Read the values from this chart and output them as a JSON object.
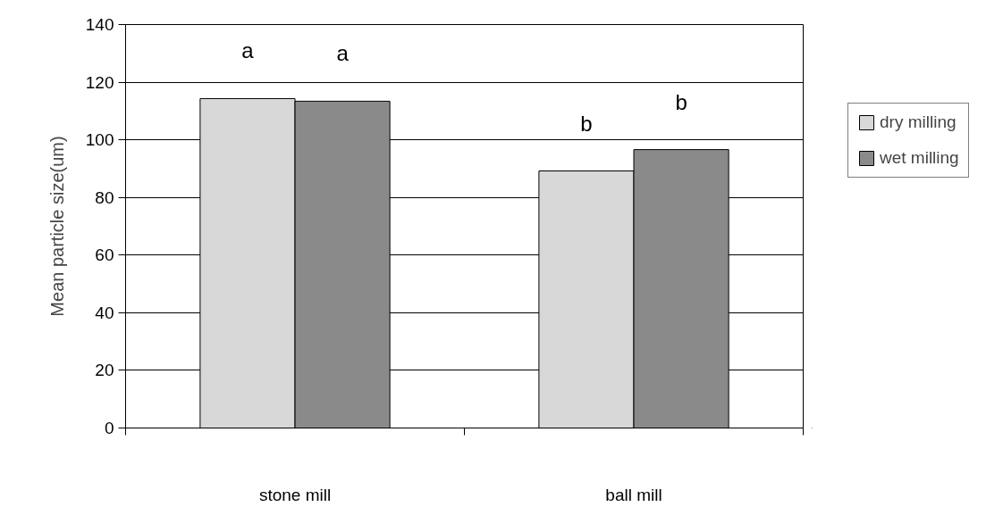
{
  "chart_data": {
    "type": "bar",
    "ylabel": "Mean particle size(um)",
    "categories": [
      "stone mill",
      "ball mill"
    ],
    "series": [
      {
        "name": "dry milling",
        "color": "#d8d8d8",
        "values": [
          114.3,
          89.2
        ],
        "value_labels": [
          "a",
          "b"
        ]
      },
      {
        "name": "wet milling",
        "color": "#8a8a8a",
        "values": [
          113.4,
          96.6
        ],
        "value_labels": [
          "a",
          "b"
        ]
      }
    ],
    "ylim": [
      0,
      140
    ],
    "yticks": [
      0,
      20,
      40,
      60,
      80,
      100,
      120,
      140
    ],
    "grid": "y",
    "legend": "right"
  }
}
